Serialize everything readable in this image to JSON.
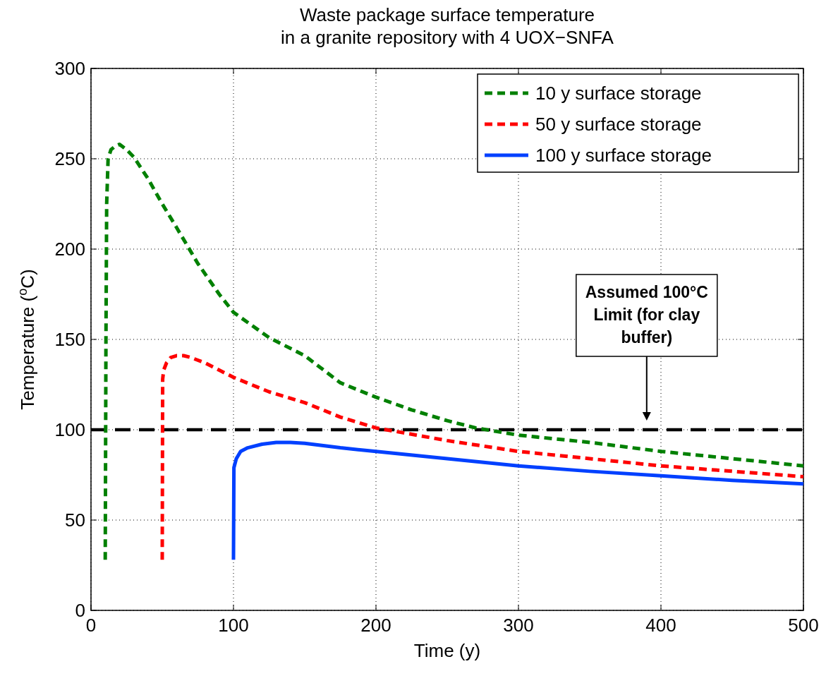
{
  "chart_data": {
    "type": "line",
    "title": "Waste package surface temperature\nin a granite repository with 4 UOX−SNFA",
    "xlabel": "Time (y)",
    "ylabel": "Temperature ($^{o}$C)",
    "xlim": [
      0,
      500
    ],
    "xticks": [
      0,
      100,
      200,
      300,
      400,
      500
    ],
    "ylim": [
      0,
      300
    ],
    "yticks": [
      0,
      50,
      100,
      150,
      200,
      250,
      300
    ],
    "grid": true,
    "legend": "top right",
    "series": [
      {
        "name": "10 y surface storage",
        "color": "#008000",
        "line_style": "dashed",
        "x": [
          10,
          10.5,
          11,
          12,
          14,
          17,
          20,
          25,
          30,
          40,
          50,
          60,
          75,
          90,
          100,
          125,
          150,
          175,
          200,
          225,
          250,
          270,
          300,
          350,
          400,
          450,
          500
        ],
        "values": [
          28,
          150,
          225,
          250,
          255,
          257,
          258,
          255,
          251,
          239,
          225,
          212,
          192,
          175,
          165,
          151,
          141,
          126,
          118,
          111,
          105,
          101,
          97,
          93,
          88,
          84,
          80
        ]
      },
      {
        "name": "50 y surface storage",
        "color": "#ff0000",
        "line_style": "dashed",
        "x": [
          50,
          50.3,
          51,
          53,
          56,
          60,
          65,
          70,
          80,
          90,
          100,
          125,
          150,
          175,
          200,
          250,
          300,
          350,
          400,
          450,
          500
        ],
        "values": [
          28,
          128,
          133,
          137,
          140,
          141,
          141,
          140,
          137,
          133,
          129,
          121,
          115,
          107,
          101,
          94,
          88,
          84,
          80,
          77,
          74
        ]
      },
      {
        "name": "100 y surface storage",
        "color": "#0040ff",
        "line_style": "solid",
        "x": [
          100,
          100.3,
          102,
          105,
          110,
          120,
          130,
          140,
          150,
          175,
          200,
          250,
          300,
          350,
          400,
          450,
          500
        ],
        "values": [
          28,
          79,
          84,
          88,
          90,
          92,
          93,
          93,
          92.5,
          90,
          88,
          84,
          80,
          77,
          74.5,
          72,
          70
        ]
      }
    ],
    "ref_lines": [
      {
        "axis": "y",
        "value": 100,
        "color": "#000000",
        "line_style": "dashed"
      }
    ],
    "annotations": [
      "Assumed 100°C Limit (for clay buffer)"
    ]
  }
}
